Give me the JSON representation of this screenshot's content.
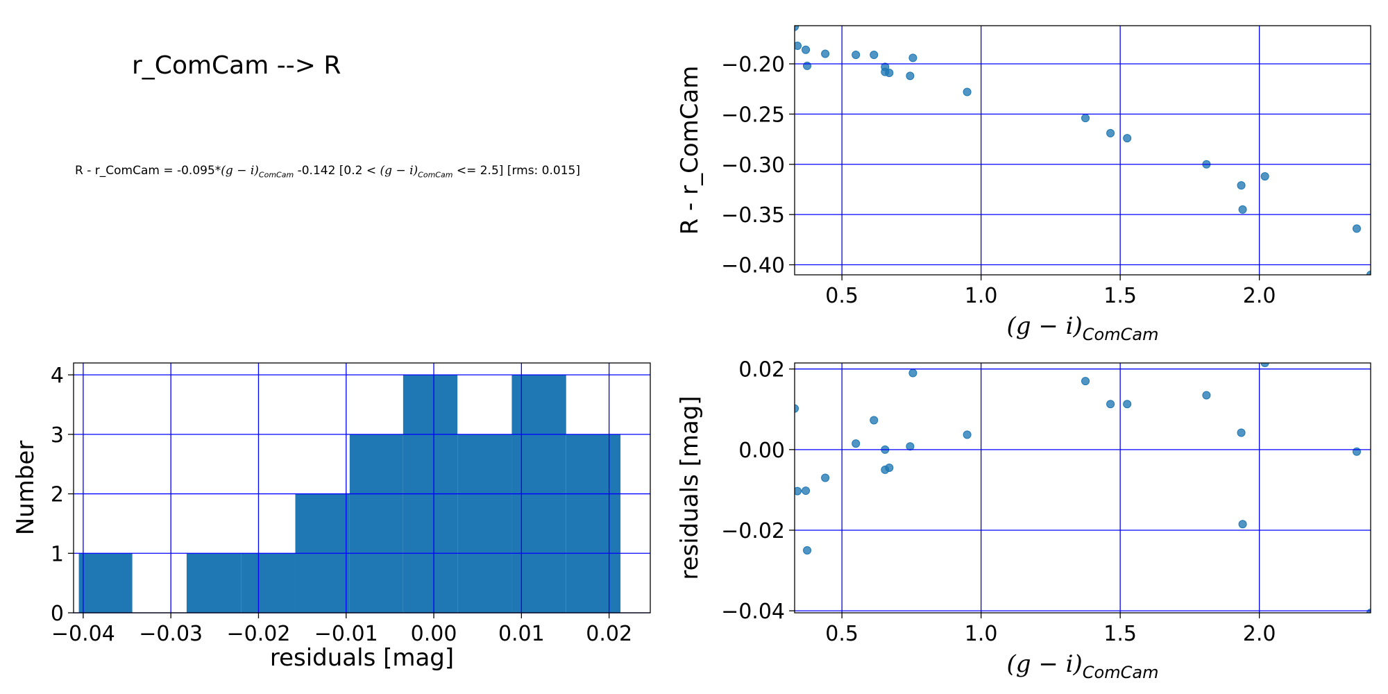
{
  "figure": {
    "title": "r_ComCam --> R",
    "equation": {
      "lhs": "R - r_ComCam = -0.095*",
      "term1": "(g − i)",
      "term1_sub": "ComCam",
      "mid": " -0.142  [0.2 < ",
      "term2": "(g − i)",
      "term2_sub": "ComCam",
      "tail": " <= 2.5]  [rms: 0.015]"
    }
  },
  "colors": {
    "points": "#1f77b4",
    "bars": "#1f77b4",
    "grid": "#0000ff"
  },
  "chart_data": [
    {
      "id": "fit",
      "type": "scatter",
      "title": "",
      "xlabel_main": "(g − i)",
      "xlabel_sub": "ComCam",
      "ylabel": "R - r_ComCam",
      "xlim": [
        0.33,
        2.4
      ],
      "ylim": [
        -0.41,
        -0.162
      ],
      "xticks": [
        0.5,
        1.0,
        1.5,
        2.0
      ],
      "xtick_labels": [
        "0.5",
        "1.0",
        "1.5",
        "2.0"
      ],
      "yticks": [
        -0.2,
        -0.25,
        -0.3,
        -0.35,
        -0.4
      ],
      "ytick_labels": [
        "−0.20",
        "−0.25",
        "−0.30",
        "−0.35",
        "−0.40"
      ],
      "grid": true,
      "x": [
        0.33,
        0.34,
        0.37,
        0.375,
        0.44,
        0.55,
        0.615,
        0.655,
        0.655,
        0.67,
        0.745,
        0.755,
        0.95,
        1.375,
        1.465,
        1.525,
        1.81,
        1.935,
        1.94,
        2.02,
        2.35,
        2.4
      ],
      "y": [
        -0.163,
        -0.182,
        -0.186,
        -0.202,
        -0.19,
        -0.191,
        -0.191,
        -0.203,
        -0.208,
        -0.209,
        -0.212,
        -0.194,
        -0.228,
        -0.254,
        -0.269,
        -0.274,
        -0.3,
        -0.321,
        -0.345,
        -0.312,
        -0.364,
        -0.41
      ]
    },
    {
      "id": "hist",
      "type": "bar",
      "title": "",
      "xlabel": "residuals [mag]",
      "ylabel": "Number",
      "xlim": [
        -0.0411,
        0.0247
      ],
      "ylim": [
        0,
        4.2
      ],
      "xticks": [
        -0.04,
        -0.03,
        -0.02,
        -0.01,
        0.0,
        0.01,
        0.02
      ],
      "xtick_labels": [
        "−0.04",
        "−0.03",
        "−0.02",
        "−0.01",
        "0.00",
        "0.01",
        "0.02"
      ],
      "yticks": [
        0,
        1,
        2,
        3,
        4
      ],
      "ytick_labels": [
        "0",
        "1",
        "2",
        "3",
        "4"
      ],
      "grid": true,
      "bin_edges": [
        -0.0405,
        -0.0344,
        -0.0282,
        -0.022,
        -0.0158,
        -0.0096,
        -0.0035,
        0.0027,
        0.0089,
        0.0151,
        0.0213
      ],
      "values": [
        1,
        0,
        1,
        1,
        2,
        3,
        4,
        3,
        4,
        3
      ]
    },
    {
      "id": "resid",
      "type": "scatter",
      "title": "",
      "xlabel_main": "(g − i)",
      "xlabel_sub": "ComCam",
      "ylabel": "residuals [mag]",
      "xlim": [
        0.33,
        2.4
      ],
      "ylim": [
        -0.0405,
        0.0215
      ],
      "xticks": [
        0.5,
        1.0,
        1.5,
        2.0
      ],
      "xtick_labels": [
        "0.5",
        "1.0",
        "1.5",
        "2.0"
      ],
      "yticks": [
        0.02,
        0.0,
        -0.02,
        -0.04
      ],
      "ytick_labels": [
        "0.02",
        "0.00",
        "−0.02",
        "−0.04"
      ],
      "grid": true,
      "x": [
        0.33,
        0.34,
        0.37,
        0.375,
        0.44,
        0.55,
        0.615,
        0.655,
        0.655,
        0.67,
        0.745,
        0.755,
        0.95,
        1.375,
        1.465,
        1.525,
        1.81,
        1.935,
        1.94,
        2.02,
        2.35,
        2.4
      ],
      "y": [
        0.0102,
        -0.0103,
        -0.0102,
        -0.025,
        -0.007,
        0.0015,
        0.0073,
        0.0,
        -0.005,
        -0.0045,
        0.0008,
        0.019,
        0.0037,
        0.017,
        0.0113,
        0.0113,
        0.0135,
        0.0042,
        -0.0185,
        0.0215,
        -0.0005,
        -0.0405
      ]
    }
  ]
}
